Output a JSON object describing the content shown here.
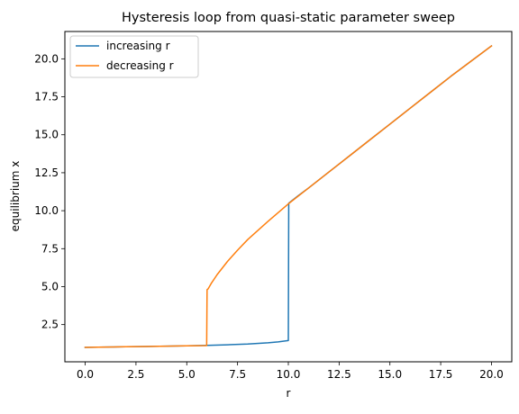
{
  "chart_data": {
    "type": "line",
    "title": "Hysteresis loop from quasi-static parameter sweep",
    "xlabel": "r",
    "ylabel": "equilibrium x",
    "xlim": [
      -1.0,
      21.0
    ],
    "ylim": [
      0.05,
      21.8
    ],
    "xticks": [
      0.0,
      2.5,
      5.0,
      7.5,
      10.0,
      12.5,
      15.0,
      17.5,
      20.0
    ],
    "xtick_labels": [
      "0.0",
      "2.5",
      "5.0",
      "7.5",
      "10.0",
      "12.5",
      "15.0",
      "17.5",
      "20.0"
    ],
    "yticks": [
      2.5,
      5.0,
      7.5,
      10.0,
      12.5,
      15.0,
      17.5,
      20.0
    ],
    "ytick_labels": [
      "2.5",
      "5.0",
      "7.5",
      "10.0",
      "12.5",
      "15.0",
      "17.5",
      "20.0"
    ],
    "grid": false,
    "legend_position": "upper-left",
    "series": [
      {
        "name": "increasing r",
        "color": "#1f77b4",
        "x": [
          0,
          1,
          2,
          3,
          4,
          5,
          6,
          7,
          8,
          9,
          9.5,
          10.0,
          10.02,
          10.5,
          11,
          12,
          13,
          14,
          15,
          16,
          17,
          18,
          19,
          20
        ],
        "y": [
          1.0,
          1.02,
          1.04,
          1.06,
          1.08,
          1.1,
          1.13,
          1.17,
          1.22,
          1.3,
          1.36,
          1.45,
          10.5,
          11.0,
          11.5,
          12.55,
          13.6,
          14.65,
          15.7,
          16.75,
          17.8,
          18.85,
          19.85,
          20.85
        ]
      },
      {
        "name": "decreasing r",
        "color": "#ff7f0e",
        "x": [
          20,
          19,
          18,
          17,
          16,
          15,
          14,
          13,
          12,
          11,
          10,
          9,
          8,
          7.5,
          7,
          6.5,
          6.2,
          6.05,
          6.0,
          5.98,
          5,
          4,
          3,
          2,
          1,
          0
        ],
        "y": [
          20.85,
          19.85,
          18.85,
          17.8,
          16.75,
          15.7,
          14.65,
          13.6,
          12.55,
          11.5,
          10.45,
          9.3,
          8.1,
          7.4,
          6.65,
          5.8,
          5.2,
          4.85,
          4.8,
          1.12,
          1.1,
          1.08,
          1.06,
          1.04,
          1.02,
          1.0
        ]
      }
    ]
  }
}
